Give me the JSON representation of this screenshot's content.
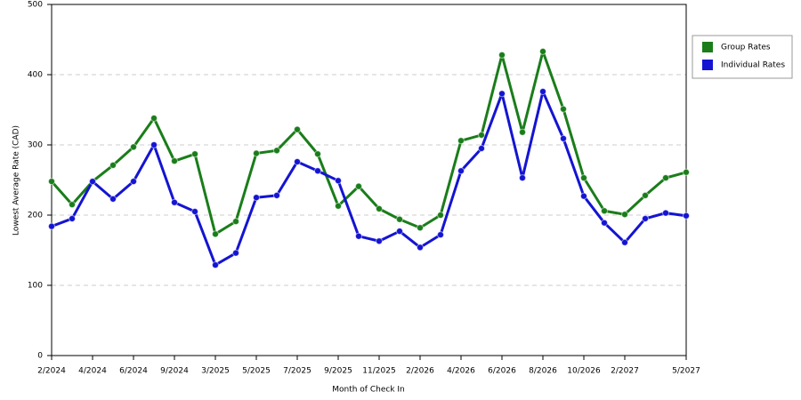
{
  "chart_data": {
    "type": "line",
    "x_label": "Month of Check In",
    "y_label": "Lowest Average Rate (CAD)",
    "categories": [
      "2/2024",
      null,
      "4/2024",
      null,
      "6/2024",
      null,
      "9/2024",
      null,
      "3/2025",
      null,
      "5/2025",
      null,
      "7/2025",
      null,
      "9/2025",
      null,
      "11/2025",
      null,
      "2/2026",
      null,
      "4/2026",
      null,
      "6/2026",
      null,
      "8/2026",
      null,
      "10/2026",
      null,
      "2/2027",
      null,
      null,
      "5/2027"
    ],
    "series": [
      {
        "name": "Group Rates",
        "color": "#1a7d1a",
        "values": [
          248,
          215,
          248,
          271,
          297,
          338,
          277,
          287,
          173,
          191,
          288,
          292,
          322,
          287,
          213,
          241,
          209,
          194,
          182,
          200,
          306,
          314,
          428,
          318,
          433,
          351,
          253,
          206,
          201,
          228,
          253,
          261
        ]
      },
      {
        "name": "Individual Rates",
        "color": "#1414d2",
        "values": [
          184,
          195,
          248,
          223,
          248,
          300,
          218,
          205,
          129,
          146,
          225,
          228,
          276,
          263,
          249,
          170,
          163,
          177,
          154,
          172,
          263,
          295,
          373,
          253,
          376,
          309,
          227,
          189,
          161,
          195,
          203,
          199
        ]
      }
    ],
    "ylim": [
      0,
      500
    ],
    "yticks": [
      0,
      100,
      200,
      300,
      400,
      500
    ],
    "grid": true,
    "legend": "right"
  }
}
